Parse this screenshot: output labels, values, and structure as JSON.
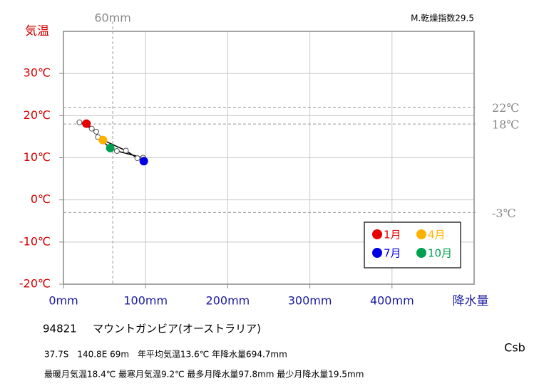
{
  "chart_data": {
    "type": "scatter",
    "annotation": "M.乾燥指数29.5",
    "xlabel": "降水量",
    "ylabel": "気温",
    "x": [
      28,
      19.5,
      34.4,
      48,
      76,
      90,
      97.8,
      97,
      65,
      57,
      42,
      40
    ],
    "values": [
      18.1,
      18.4,
      16.9,
      14.2,
      11.7,
      9.9,
      9.2,
      10.0,
      11.6,
      12.3,
      14.9,
      16.2
    ],
    "colors": [
      "#e60000",
      "#ffffff",
      "#ffffff",
      "#ffb300",
      "#ffffff",
      "#ffffff",
      "#0000e6",
      "#ffffff",
      "#ffffff",
      "#00a050",
      "#ffffff",
      "#ffffff"
    ],
    "line_color": "#000000",
    "xlim": [
      0,
      500
    ],
    "ylim": [
      -20,
      40
    ],
    "grid": true,
    "xticks": [
      {
        "value": 0,
        "label": "0mm"
      },
      {
        "value": 100,
        "label": "100mm"
      },
      {
        "value": 200,
        "label": "200mm"
      },
      {
        "value": 300,
        "label": "300mm"
      },
      {
        "value": 400,
        "label": "400mm"
      }
    ],
    "yticks": [
      {
        "value": 30,
        "label": "30℃"
      },
      {
        "value": 20,
        "label": "20℃"
      },
      {
        "value": 10,
        "label": "10℃"
      },
      {
        "value": 0,
        "label": "0℃"
      },
      {
        "value": -10,
        "label": "-10℃"
      },
      {
        "value": -20,
        "label": "-20℃"
      }
    ],
    "x_reference": [
      {
        "value": 60,
        "label": "60mm"
      }
    ],
    "y_reference": [
      {
        "value": 22,
        "label": "22℃"
      },
      {
        "value": 18,
        "label": "18℃"
      },
      {
        "value": -3,
        "label": "-3℃"
      }
    ],
    "legend": [
      {
        "label": "1月",
        "color": "#e60000"
      },
      {
        "label": "4月",
        "color": "#ffb300"
      },
      {
        "label": "7月",
        "color": "#0000e6"
      },
      {
        "label": "10月",
        "color": "#00a050"
      }
    ]
  },
  "station": {
    "id": "94821",
    "name": "マウントガンビア(オーストラリア)",
    "line1": "37.7S　140.8E 69m　年平均気温13.6℃ 年降水量694.7mm",
    "line2": "最暖月気温18.4℃ 最寒月気温9.2℃ 最多月降水量97.8mm 最少月降水量19.5mm",
    "climate": "Csb"
  }
}
